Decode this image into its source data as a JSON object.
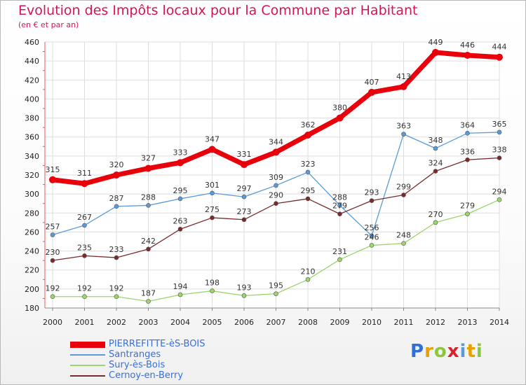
{
  "title": "Evolution des Impôts locaux pour la Commune par Habitant",
  "subtitle": "(en € et par an)",
  "brand": {
    "text": "Proxiti",
    "letter_colors": [
      "#2f6fd6",
      "#e6a100",
      "#8cc63f",
      "#d8232a",
      "#5a9ad8",
      "#e6a100",
      "#8cc63f"
    ]
  },
  "chart_data": {
    "type": "line",
    "title": "Evolution des Impôts locaux pour la Commune par Habitant",
    "subtitle": "(en € et par an)",
    "x": [
      "2000",
      "2001",
      "2002",
      "2003",
      "2004",
      "2005",
      "2006",
      "2007",
      "2008",
      "2009",
      "2010",
      "2011",
      "2012",
      "2013",
      "2014"
    ],
    "ylim": [
      180,
      460
    ],
    "yticks": [
      180,
      200,
      220,
      240,
      260,
      280,
      300,
      320,
      340,
      360,
      380,
      400,
      420,
      440,
      460
    ],
    "grid": true,
    "legend_position": "bottom-left",
    "series": [
      {
        "name": "PIERREFITTE-èS-BOIS",
        "color": "#e8000b",
        "values": [
          315,
          311,
          320,
          327,
          333,
          347,
          331,
          344,
          362,
          380,
          407,
          413,
          449,
          446,
          444
        ]
      },
      {
        "name": "Santranges",
        "color": "#5b9bd5",
        "values": [
          257,
          267,
          287,
          288,
          295,
          301,
          297,
          309,
          323,
          288,
          256,
          363,
          348,
          364,
          365
        ]
      },
      {
        "name": "Sury-ès-Bois",
        "color": "#9ad66a",
        "values": [
          192,
          192,
          192,
          187,
          194,
          198,
          193,
          195,
          210,
          231,
          246,
          248,
          270,
          279,
          294
        ]
      },
      {
        "name": "Cernoy-en-Berry",
        "color": "#7a2a2a",
        "values": [
          230,
          235,
          233,
          242,
          263,
          275,
          273,
          290,
          295,
          279,
          293,
          299,
          324,
          336,
          338
        ]
      }
    ]
  }
}
